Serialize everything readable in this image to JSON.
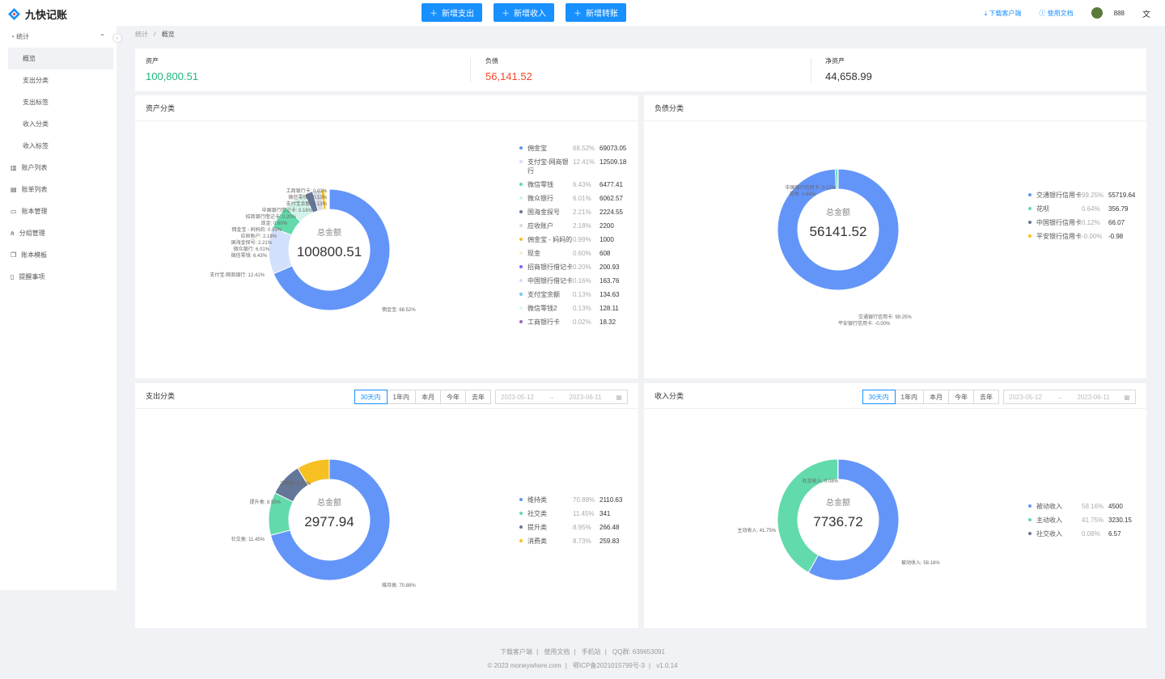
{
  "app": {
    "name": "九快记账"
  },
  "header": {
    "buttons": [
      "新增支出",
      "新增收入",
      "新增转账"
    ],
    "download": "下载客户端",
    "docs": "使用文档",
    "user": "888"
  },
  "sidebar": {
    "stats": "统计",
    "sub": [
      "概览",
      "支出分类",
      "支出标签",
      "收入分类",
      "收入标签"
    ],
    "items": [
      "账户列表",
      "账单列表",
      "账本管理",
      "分组管理",
      "账本模板",
      "提醒事项"
    ]
  },
  "breadcrumb": {
    "root": "统计",
    "current": "概览"
  },
  "summary": {
    "assets_label": "资产",
    "assets": "100,800.51",
    "debt_label": "负债",
    "debt": "56,141.52",
    "net_label": "净资产",
    "net": "44,658.99"
  },
  "colors": {
    "blue": "#6395f9",
    "light": "#d3e0fb",
    "green": "#62daab",
    "gray": "#c8e7df",
    "navy": "#657798",
    "yellow": "#f6c022",
    "purple": "#7666f9",
    "teal": "#74cbed",
    "pink": "#9967bd"
  },
  "panels": {
    "assets": {
      "title": "资产分类",
      "center_label": "总金额",
      "center_value": "100800.51"
    },
    "debt": {
      "title": "负债分类",
      "center_label": "总金额",
      "center_value": "56141.52"
    },
    "expense": {
      "title": "支出分类",
      "center_label": "总金额",
      "center_value": "2977.94"
    },
    "income": {
      "title": "收入分类",
      "center_label": "总金额",
      "center_value": "7736.72"
    }
  },
  "filters": {
    "options": [
      "30天内",
      "1年内",
      "本月",
      "今年",
      "去年"
    ],
    "start": "2023-05-12",
    "end": "2023-06-11"
  },
  "chart_data": [
    {
      "type": "pie",
      "title": "资产分类",
      "series": [
        {
          "name": "佣金宝",
          "pct": "68.52%",
          "value": 69073.05,
          "color": "#6395f9"
        },
        {
          "name": "支付宝-网商银行",
          "pct": "12.41%",
          "value": 12509.18,
          "color": "#d3e0fb"
        },
        {
          "name": "微信零钱",
          "pct": "6.43%",
          "value": 6477.41,
          "color": "#62daab"
        },
        {
          "name": "微众银行",
          "pct": "6.01%",
          "value": 6062.57,
          "color": "#d2f3e9"
        },
        {
          "name": "国海金探号",
          "pct": "2.21%",
          "value": 2224.55,
          "color": "#657798"
        },
        {
          "name": "应收账户",
          "pct": "2.18%",
          "value": 2200,
          "color": "#d5dae3"
        },
        {
          "name": "佣金宝 - 妈妈的",
          "pct": "0.99%",
          "value": 1000,
          "color": "#f6c022"
        },
        {
          "name": "现金",
          "pct": "0.60%",
          "value": 608,
          "color": "#fdefc5"
        },
        {
          "name": "招商银行借记卡",
          "pct": "0.20%",
          "value": 200.93,
          "color": "#7666f9"
        },
        {
          "name": "中国银行借记卡",
          "pct": "0.16%",
          "value": 163.76,
          "color": "#ddd9fd"
        },
        {
          "name": "支付宝余额",
          "pct": "0.13%",
          "value": 134.63,
          "color": "#74cbed"
        },
        {
          "name": "微信零钱2",
          "pct": "0.13%",
          "value": 128.11,
          "color": "#dcf2fb"
        },
        {
          "name": "工商银行卡",
          "pct": "0.02%",
          "value": 18.32,
          "color": "#9967bd"
        }
      ],
      "labels": [
        {
          "t": "佣金宝: 68.52%",
          "x": 305,
          "y": 235,
          "a": "start"
        },
        {
          "t": "支付宝-网商银行: 12.41%",
          "x": 160,
          "y": 192,
          "a": "end"
        },
        {
          "t": "微信零钱: 6.43%",
          "x": 163,
          "y": 168,
          "a": "end"
        },
        {
          "t": "微众银行: 6.01%",
          "x": 166,
          "y": 160,
          "a": "end"
        },
        {
          "t": "国海金探号: 2.21%",
          "x": 169,
          "y": 152,
          "a": "end"
        },
        {
          "t": "应收账户: 2.18%",
          "x": 175,
          "y": 144,
          "a": "end"
        },
        {
          "t": "佣金宝 - 妈妈的: 0.99%",
          "x": 181,
          "y": 136,
          "a": "end"
        },
        {
          "t": "现金: 0.60%",
          "x": 188,
          "y": 128,
          "a": "end"
        },
        {
          "t": "招商银行借记卡: 0.20%",
          "x": 199,
          "y": 120,
          "a": "end"
        },
        {
          "t": "中国银行借记卡: 0.16%",
          "x": 219,
          "y": 112,
          "a": "end"
        },
        {
          "t": "支付宝余额: 0.13%",
          "x": 237,
          "y": 104,
          "a": "end"
        },
        {
          "t": "微信零钱2: 0.13%",
          "x": 237,
          "y": 96,
          "a": "end"
        },
        {
          "t": "工商银行卡: 0.02%",
          "x": 237,
          "y": 88,
          "a": "end"
        }
      ]
    },
    {
      "type": "pie",
      "title": "负债分类",
      "series": [
        {
          "name": "交通银行信用卡",
          "pct": "99.25%",
          "value": 55719.64,
          "color": "#6395f9"
        },
        {
          "name": "花呗",
          "pct": "0.64%",
          "value": 356.79,
          "color": "#62daab"
        },
        {
          "name": "中国银行信用卡",
          "pct": "0.12%",
          "value": 66.07,
          "color": "#657798"
        },
        {
          "name": "平安银行信用卡",
          "pct": "-0.00%",
          "value": -0.98,
          "color": "#f6c022"
        }
      ],
      "labels": [
        {
          "t": "交通银行信用卡: 99.25%",
          "x": 265,
          "y": 244,
          "a": "start"
        },
        {
          "t": "平安银行信用卡: -0.00%",
          "x": 240,
          "y": 252,
          "a": "start"
        },
        {
          "t": "中国银行信用卡: 0.12%",
          "x": 237,
          "y": 84,
          "a": "end"
        },
        {
          "t": "花呗: 0.64%",
          "x": 212,
          "y": 92,
          "a": "end"
        }
      ]
    },
    {
      "type": "pie",
      "title": "支出分类",
      "series": [
        {
          "name": "维持类",
          "pct": "70.88%",
          "value": 2110.63,
          "color": "#6395f9"
        },
        {
          "name": "社交类",
          "pct": "11.45%",
          "value": 341,
          "color": "#62daab"
        },
        {
          "name": "提升类",
          "pct": "8.95%",
          "value": 266.48,
          "color": "#657798"
        },
        {
          "name": "消费类",
          "pct": "8.73%",
          "value": 259.83,
          "color": "#f6c022"
        }
      ],
      "labels": [
        {
          "t": "维持类: 70.88%",
          "x": 305,
          "y": 220,
          "a": "start"
        },
        {
          "t": "社交类: 11.45%",
          "x": 160,
          "y": 163,
          "a": "end"
        },
        {
          "t": "提升类: 8.95%",
          "x": 180,
          "y": 117,
          "a": "end"
        },
        {
          "t": "消费类: 8.73%",
          "x": 217,
          "y": 94,
          "a": "end"
        }
      ]
    },
    {
      "type": "pie",
      "title": "收入分类",
      "series": [
        {
          "name": "被动收入",
          "pct": "58.16%",
          "value": 4500,
          "color": "#6395f9"
        },
        {
          "name": "主动收入",
          "pct": "41.75%",
          "value": 3230.15,
          "color": "#62daab"
        },
        {
          "name": "社交收入",
          "pct": "0.08%",
          "value": 6.57,
          "color": "#657798"
        }
      ],
      "labels": [
        {
          "t": "被动收入: 58.16%",
          "x": 318,
          "y": 192,
          "a": "start"
        },
        {
          "t": "主动收入: 41.75%",
          "x": 163,
          "y": 152,
          "a": "end"
        },
        {
          "t": "社交收入: 0.08%",
          "x": 240,
          "y": 91,
          "a": "end"
        }
      ]
    }
  ],
  "footer": {
    "links": [
      "下载客户端",
      "使用文档",
      "手机站",
      "QQ群: 639653091"
    ],
    "copyright": "© 2023 moneywhere.com",
    "icp": "鄂ICP备2021015799号-3",
    "version": "v1.0.14"
  }
}
